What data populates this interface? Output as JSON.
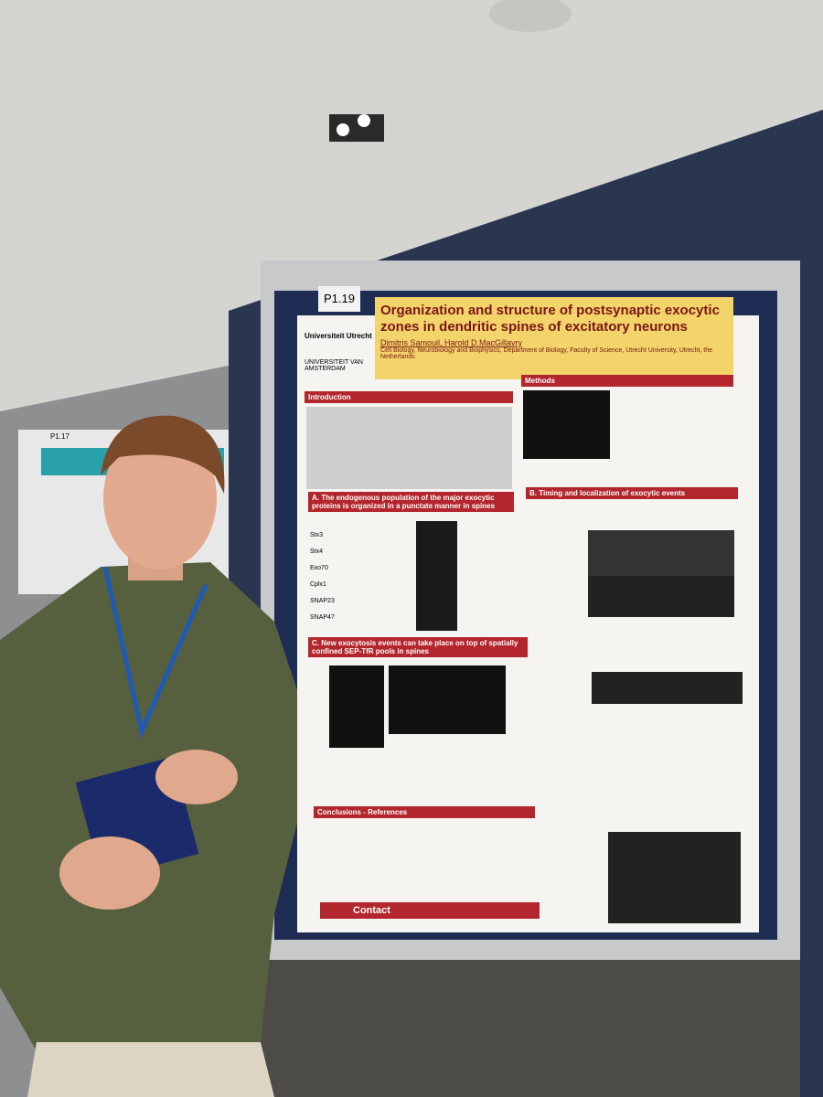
{
  "board_label": "P1.19",
  "side_board_label": "P1.17",
  "poster": {
    "logos": [
      "Universiteit Utrecht",
      "UNIVERSITEIT VAN AMSTERDAM"
    ],
    "title": "Organization and structure of postsynaptic exocytic zones in dendritic spines of excitatory neurons",
    "authors": "Dimitris Samouil, Harold D.MacGillavry",
    "affiliation": "Cell Biology, Neurobiology and Biophysics, Department of Biology, Faculty of Science, Utrecht University, Utrecht, the Netherlands",
    "sections": {
      "introduction": "Introduction",
      "methods": "Methods",
      "a": "A. The endogenous population of the major exocytic proteins is organized in a punctate manner in spines",
      "b": "B. Timing and localization of exocytic events",
      "c": "C. New exocytosis events can take place on top of spatially confined SEP-TfR pools in spines",
      "conclusions": "Conclusions - References",
      "contact": "Contact"
    },
    "proteins": [
      "Stx3",
      "Stx4",
      "Exo70",
      "Cplx1",
      "SNAP23",
      "SNAP47"
    ]
  }
}
